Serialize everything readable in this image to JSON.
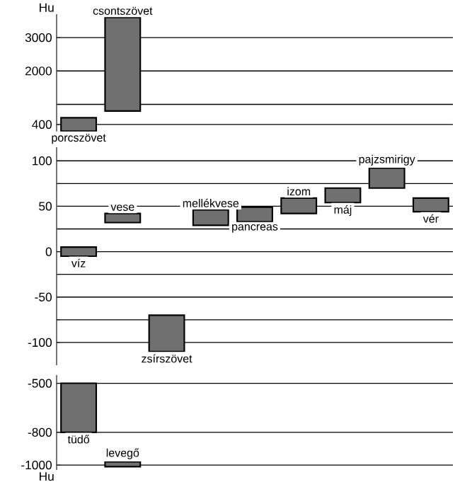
{
  "chart_data": [
    {
      "type": "bar",
      "ylabel": "Hu",
      "categories": [
        "porcszövet",
        "csontszövet"
      ],
      "base": [
        200,
        800
      ],
      "values": [
        400,
        2800
      ],
      "color": "#707070",
      "ylim": [
        100,
        3700
      ],
      "yticks": [
        400,
        {
          "value": 1000,
          "label": null
        },
        2000,
        3000
      ],
      "grid": "y"
    },
    {
      "type": "bar",
      "categories": [
        "víz",
        "vese",
        "zsírszövet",
        "mellékvese",
        "pancreas",
        "izom",
        "máj",
        "pajzsmirigy",
        "vér"
      ],
      "base": [
        -5,
        32,
        -110,
        29,
        33,
        42,
        54,
        70,
        44
      ],
      "values": [
        10,
        10,
        40,
        17,
        16,
        17,
        16,
        22,
        15
      ],
      "color": "#707070",
      "ylim": [
        -125,
        115
      ],
      "yticks": [
        {
          "value": -100,
          "label": "-100"
        },
        {
          "value": -75,
          "label": null
        },
        {
          "value": -50,
          "label": "-50"
        },
        {
          "value": -25,
          "label": null
        },
        0,
        {
          "value": 25,
          "label": null
        },
        50,
        {
          "value": 75,
          "label": null
        },
        100
      ],
      "grid": "y"
    },
    {
      "type": "bar",
      "ylabel": "Hu",
      "categories": [
        "tüdő",
        "levegő"
      ],
      "base": [
        -800,
        -1010
      ],
      "values": [
        300,
        30
      ],
      "color": "#707070",
      "ylim": [
        -1030,
        -450
      ],
      "yticks": [
        {
          "value": -1000,
          "label": "-1000"
        },
        {
          "value": -800,
          "label": "-800"
        },
        {
          "value": -500,
          "label": "-500"
        }
      ],
      "grid": "y"
    }
  ]
}
